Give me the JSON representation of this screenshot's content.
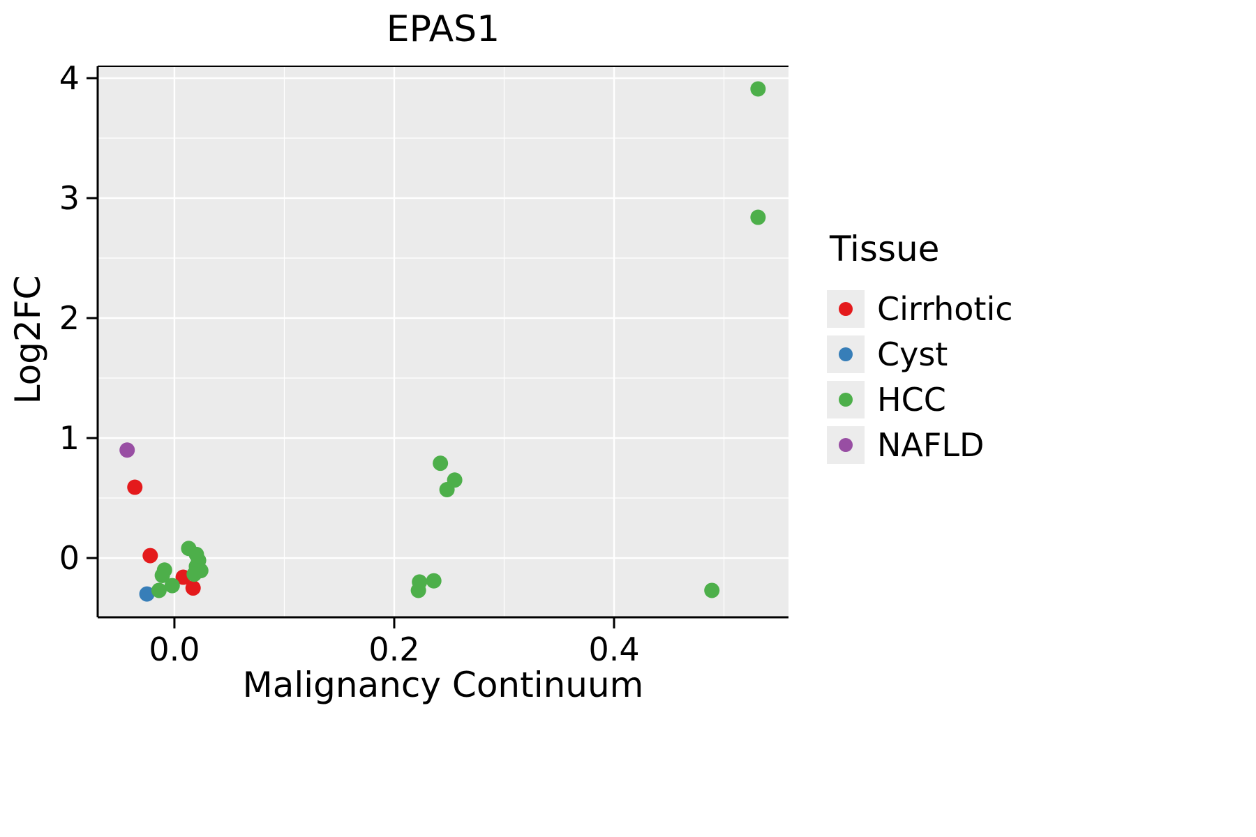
{
  "chart_data": {
    "type": "scatter",
    "title": "EPAS1",
    "xlabel": "Malignancy Continuum",
    "ylabel": "Log2FC",
    "legend_title": "Tissue",
    "xlim": [
      -0.0698,
      0.5587
    ],
    "ylim": [
      -0.494,
      4.099
    ],
    "x_ticks": [
      {
        "value": 0.0,
        "label": "0.0"
      },
      {
        "value": 0.2,
        "label": "0.2"
      },
      {
        "value": 0.4,
        "label": "0.4"
      }
    ],
    "y_ticks": [
      {
        "value": 0,
        "label": "0"
      },
      {
        "value": 1,
        "label": "1"
      },
      {
        "value": 2,
        "label": "2"
      },
      {
        "value": 3,
        "label": "3"
      },
      {
        "value": 4,
        "label": "4"
      }
    ],
    "grid": {
      "major_x": [
        0.0,
        0.2,
        0.4
      ],
      "minor_x": [
        0.1,
        0.3,
        0.5
      ],
      "major_y": [
        0,
        1,
        2,
        3,
        4
      ],
      "minor_y": [
        0.5,
        1.5,
        2.5,
        3.5
      ]
    },
    "panel_bg": "#EBEBEB",
    "grid_color": "#FFFFFF",
    "axis_color": "#000000",
    "series": [
      {
        "name": "Cirrhotic",
        "color": "#E41A1C",
        "points": [
          [
            -0.036,
            0.59
          ],
          [
            -0.022,
            0.02
          ],
          [
            0.008,
            -0.16
          ],
          [
            0.017,
            -0.25
          ]
        ]
      },
      {
        "name": "Cyst",
        "color": "#377EB8",
        "points": [
          [
            -0.025,
            -0.3
          ]
        ]
      },
      {
        "name": "HCC",
        "color": "#4DAF4A",
        "points": [
          [
            0.531,
            3.91
          ],
          [
            0.531,
            2.84
          ],
          [
            0.242,
            0.79
          ],
          [
            0.255,
            0.65
          ],
          [
            0.248,
            0.57
          ],
          [
            0.223,
            -0.2
          ],
          [
            0.236,
            -0.19
          ],
          [
            0.222,
            -0.27
          ],
          [
            0.489,
            -0.27
          ],
          [
            0.013,
            0.08
          ],
          [
            0.02,
            0.03
          ],
          [
            0.022,
            -0.02
          ],
          [
            0.02,
            -0.07
          ],
          [
            0.024,
            -0.105
          ],
          [
            0.018,
            -0.135
          ],
          [
            -0.009,
            -0.1
          ],
          [
            -0.011,
            -0.145
          ],
          [
            -0.002,
            -0.23
          ],
          [
            -0.014,
            -0.27
          ]
        ]
      },
      {
        "name": "NAFLD",
        "color": "#984EA3",
        "points": [
          [
            -0.043,
            0.9
          ]
        ]
      }
    ]
  }
}
